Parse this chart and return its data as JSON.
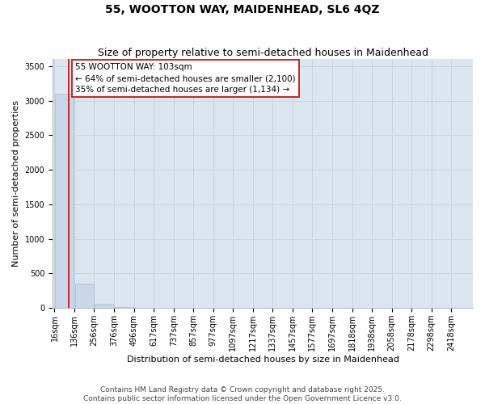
{
  "title": "55, WOOTTON WAY, MAIDENHEAD, SL6 4QZ",
  "subtitle": "Size of property relative to semi-detached houses in Maidenhead",
  "xlabel": "Distribution of semi-detached houses by size in Maidenhead",
  "ylabel": "Number of semi-detached properties",
  "property_size": 103,
  "pct_smaller": 64,
  "count_smaller": "2,100",
  "pct_larger": 35,
  "count_larger": "1,134",
  "bin_labels": [
    "16sqm",
    "136sqm",
    "256sqm",
    "376sqm",
    "496sqm",
    "617sqm",
    "737sqm",
    "857sqm",
    "977sqm",
    "1097sqm",
    "1217sqm",
    "1337sqm",
    "1457sqm",
    "1577sqm",
    "1697sqm",
    "1818sqm",
    "1938sqm",
    "2058sqm",
    "2178sqm",
    "2298sqm",
    "2418sqm"
  ],
  "bin_edges": [
    16,
    136,
    256,
    376,
    496,
    617,
    737,
    857,
    977,
    1097,
    1217,
    1337,
    1457,
    1577,
    1697,
    1818,
    1938,
    2058,
    2178,
    2298,
    2418
  ],
  "bar_values": [
    3100,
    350,
    60,
    10,
    5,
    2,
    1,
    1,
    0,
    0,
    0,
    0,
    0,
    0,
    0,
    0,
    0,
    0,
    0,
    0
  ],
  "bar_color": "#c8d8ea",
  "bar_edge_color": "#a8bece",
  "grid_color": "#c8d4e0",
  "background_color": "#dce6f0",
  "fig_background": "#ffffff",
  "line_color": "#cc0000",
  "annotation_box_facecolor": "#ffffff",
  "annotation_box_edgecolor": "#cc0000",
  "ylim": [
    0,
    3600
  ],
  "yticks": [
    0,
    500,
    1000,
    1500,
    2000,
    2500,
    3000,
    3500
  ],
  "title_fontsize": 10,
  "subtitle_fontsize": 9,
  "axis_label_fontsize": 8,
  "tick_fontsize": 7,
  "annotation_fontsize": 7.5,
  "footer_fontsize": 6.5,
  "footer": "Contains HM Land Registry data © Crown copyright and database right 2025.\nContains public sector information licensed under the Open Government Licence v3.0."
}
